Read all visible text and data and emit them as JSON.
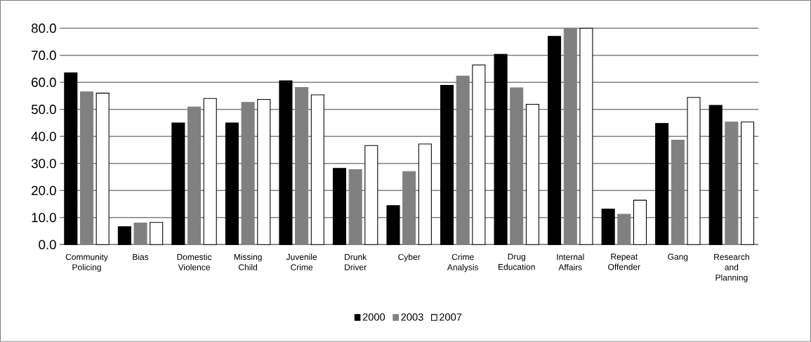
{
  "chart_data": {
    "type": "bar",
    "categories": [
      "Community Policing",
      "Bias",
      "Domestic Violence",
      "Missing Child",
      "Juvenile Crime",
      "Drunk Driver",
      "Cyber",
      "Crime Analysis",
      "Drug Education",
      "Internal Affairs",
      "Repeat Offender",
      "Gang",
      "Research and Planning"
    ],
    "series": [
      {
        "name": "2000",
        "color": "#000000",
        "values": [
          63.5,
          6.6,
          45.0,
          45.0,
          60.6,
          28.2,
          14.4,
          58.9,
          70.4,
          77.0,
          13.1,
          44.8,
          51.5
        ]
      },
      {
        "name": "2003",
        "color": "#808080",
        "values": [
          56.5,
          8.0,
          50.9,
          52.6,
          58.1,
          27.7,
          27.0,
          62.3,
          58.0,
          80.0,
          11.2,
          38.6,
          45.3
        ]
      },
      {
        "name": "2007",
        "color": "#ffffff",
        "values": [
          56.0,
          8.2,
          54.0,
          53.7,
          55.4,
          36.6,
          37.2,
          66.4,
          51.9,
          80.0,
          16.4,
          54.4,
          45.3
        ]
      }
    ],
    "ylim": [
      0,
      80
    ],
    "yticks": [
      {
        "value": 0,
        "label": "0.0"
      },
      {
        "value": 10,
        "label": "10.0"
      },
      {
        "value": 20,
        "label": "20.0"
      },
      {
        "value": 30,
        "label": "30.0"
      },
      {
        "value": 40,
        "label": "40.0"
      },
      {
        "value": 50,
        "label": "50.0"
      },
      {
        "value": 60,
        "label": "60.0"
      },
      {
        "value": 70,
        "label": "70.0"
      },
      {
        "value": 80,
        "label": "80.0"
      }
    ],
    "grid": "y",
    "legend": "bottom"
  }
}
